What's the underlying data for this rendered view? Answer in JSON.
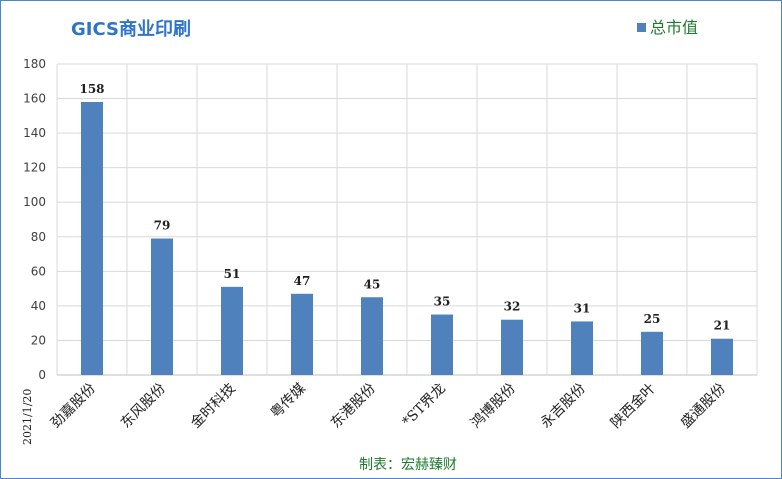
{
  "chart_data": {
    "type": "bar",
    "title": "GICS商业印刷",
    "categories": [
      "劲嘉股份",
      "东风股份",
      "金时科技",
      "粤传媒",
      "东港股份",
      "*ST界龙",
      "鸿博股份",
      "永吉股份",
      "陕西金叶",
      "盛通股份"
    ],
    "series": [
      {
        "name": "总市值",
        "values": [
          158,
          79,
          51,
          47,
          45,
          35,
          32,
          31,
          25,
          21
        ],
        "color": "#4f81bd"
      }
    ],
    "ylim": [
      0,
      180
    ],
    "yticks": [
      0,
      20,
      40,
      60,
      80,
      100,
      120,
      140,
      160,
      180
    ],
    "grid": true,
    "legend_position": "top-right",
    "date_label": "2021/1/20",
    "source": "制表：宏赫臻财"
  }
}
